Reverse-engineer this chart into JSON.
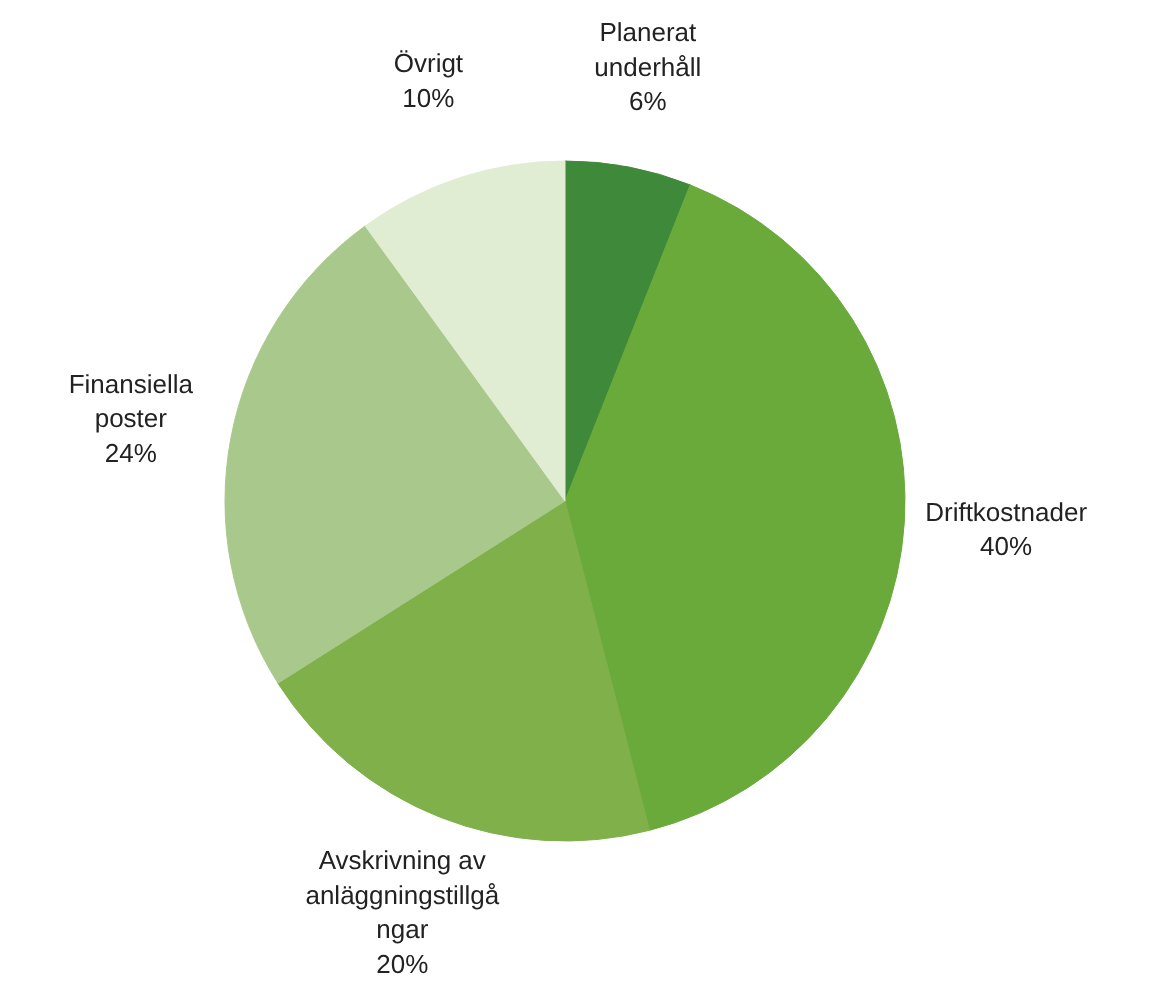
{
  "chart_data": {
    "type": "pie",
    "categories": [
      "Planerat\nunderhåll",
      "Driftkostnader",
      "Avskrivning av\nanläggningstillgå\nngar",
      "Finansiella\nposter",
      "Övrigt"
    ],
    "values": [
      6,
      40,
      20,
      24,
      10
    ],
    "value_labels": [
      "6%",
      "40%",
      "20%",
      "24%",
      "10%"
    ],
    "colors": [
      "#3f8a3a",
      "#6aaa3a",
      "#7fb04a",
      "#a9c98c",
      "#e1edd2"
    ],
    "legend": false
  }
}
